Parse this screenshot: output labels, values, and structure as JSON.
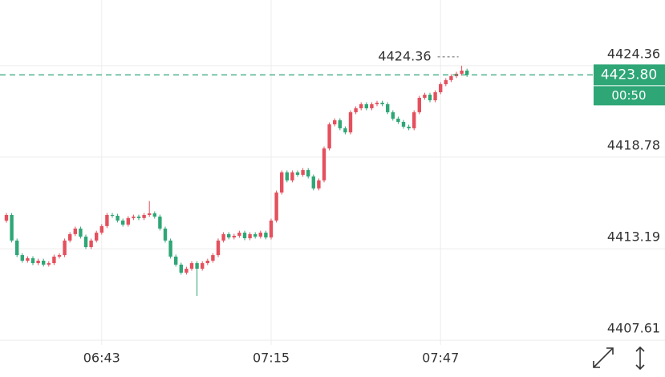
{
  "chart_data": {
    "type": "candlestick",
    "categories": [
      null,
      null,
      null,
      null,
      null,
      null,
      null,
      null,
      null,
      null,
      null,
      null,
      null,
      null,
      null,
      null,
      null,
      null,
      "06:43",
      null,
      null,
      null,
      null,
      null,
      null,
      null,
      null,
      null,
      null,
      null,
      null,
      null,
      null,
      null,
      null,
      null,
      null,
      null,
      null,
      null,
      null,
      null,
      null,
      null,
      null,
      null,
      null,
      null,
      null,
      null,
      "07:15",
      null,
      null,
      null,
      null,
      null,
      null,
      null,
      null,
      null,
      null,
      null,
      null,
      null,
      null,
      null,
      null,
      null,
      null,
      null,
      null,
      null,
      null,
      null,
      null,
      null,
      null,
      null,
      null,
      null,
      null,
      null,
      "07:47",
      null,
      null,
      null,
      null,
      null
    ],
    "open": [
      4414.9,
      4415.25,
      4413.69,
      4412.8,
      4412.46,
      4412.61,
      4412.31,
      4412.46,
      4412.22,
      4412.31,
      4412.71,
      4412.8,
      4413.69,
      4414.08,
      4414.42,
      4413.93,
      4413.29,
      4413.69,
      4414.17,
      4414.57,
      4415.25,
      4415.2,
      4414.91,
      4414.66,
      4415.06,
      4415.15,
      4415.06,
      4415.25,
      4415.35,
      4415.15,
      4414.42,
      4413.69,
      4412.71,
      4412.22,
      4411.73,
      4411.97,
      4412.31,
      4411.97,
      4412.31,
      4412.46,
      4412.8,
      4413.69,
      4414.08,
      4413.88,
      4413.98,
      4414.17,
      4413.83,
      4414.08,
      4413.93,
      4414.17,
      4413.88,
      4414.91,
      4416.62,
      4417.85,
      4417.36,
      4417.85,
      4417.7,
      4417.99,
      4417.6,
      4416.87,
      4417.36,
      4419.31,
      4420.78,
      4421.03,
      4420.54,
      4420.29,
      4421.52,
      4421.76,
      4422.01,
      4421.76,
      4422.01,
      4422.1,
      4422.01,
      4421.52,
      4421.13,
      4420.93,
      4420.64,
      4420.54,
      4421.52,
      4422.4,
      4422.59,
      4422.25,
      4422.74,
      4423.23,
      4423.48,
      4423.72,
      4423.87,
      4424.06
    ],
    "high": [
      4415.37,
      4415.37,
      4413.81,
      4412.92,
      4412.73,
      4412.73,
      4412.58,
      4412.58,
      4412.43,
      4412.83,
      4412.92,
      4413.81,
      4414.2,
      4414.54,
      4414.54,
      4414.05,
      4413.81,
      4414.29,
      4414.69,
      4415.37,
      4415.37,
      4415.32,
      4415.03,
      4415.18,
      4415.27,
      4415.27,
      4415.37,
      4416.1,
      4415.47,
      4415.27,
      4414.54,
      4413.81,
      4412.83,
      4412.34,
      4412.09,
      4412.43,
      4412.43,
      4412.43,
      4412.58,
      4412.92,
      4413.81,
      4414.2,
      4414.2,
      4414.1,
      4414.29,
      4414.29,
      4414.2,
      4414.2,
      4414.29,
      4414.29,
      4415.03,
      4416.74,
      4417.97,
      4417.97,
      4417.97,
      4417.97,
      4418.11,
      4418.11,
      4417.72,
      4417.48,
      4419.43,
      4420.9,
      4421.15,
      4421.15,
      4420.66,
      4421.64,
      4421.88,
      4422.13,
      4422.13,
      4422.13,
      4422.22,
      4422.22,
      4422.13,
      4421.64,
      4421.25,
      4421.05,
      4420.76,
      4421.64,
      4422.52,
      4422.71,
      4422.71,
      4422.86,
      4423.35,
      4423.6,
      4423.84,
      4423.99,
      4424.36,
      4424.18
    ],
    "low": [
      4414.78,
      4413.57,
      4412.68,
      4412.34,
      4412.34,
      4412.19,
      4412.19,
      4412.1,
      4412.1,
      4412.19,
      4412.59,
      4412.68,
      4413.57,
      4413.96,
      4413.81,
      4413.17,
      4413.17,
      4413.57,
      4414.05,
      4414.45,
      4415.08,
      4414.79,
      4414.54,
      4414.54,
      4414.94,
      4414.94,
      4414.94,
      4415.13,
      4415.03,
      4414.3,
      4413.57,
      4412.59,
      4412.1,
      4411.61,
      4411.61,
      4411.85,
      4410.3,
      4411.85,
      4412.19,
      4412.34,
      4412.68,
      4413.57,
      4413.76,
      4413.76,
      4413.86,
      4413.71,
      4413.71,
      4413.81,
      4413.81,
      4413.76,
      4413.76,
      4414.79,
      4416.5,
      4417.24,
      4417.24,
      4417.58,
      4417.58,
      4417.48,
      4416.75,
      4416.75,
      4417.24,
      4419.19,
      4420.66,
      4420.42,
      4420.17,
      4420.17,
      4421.4,
      4421.64,
      4421.64,
      4421.64,
      4421.89,
      4421.89,
      4421.4,
      4421.01,
      4420.81,
      4420.52,
      4420.42,
      4420.42,
      4421.4,
      4422.28,
      4422.13,
      4422.13,
      4422.62,
      4423.11,
      4423.36,
      4423.6,
      4423.75,
      4423.68
    ],
    "close": [
      4415.25,
      4413.69,
      4412.8,
      4412.46,
      4412.61,
      4412.31,
      4412.46,
      4412.22,
      4412.31,
      4412.71,
      4412.8,
      4413.69,
      4414.08,
      4414.42,
      4413.93,
      4413.29,
      4413.69,
      4414.17,
      4414.57,
      4415.25,
      4415.2,
      4414.91,
      4414.66,
      4415.06,
      4415.15,
      4415.06,
      4415.25,
      4415.35,
      4415.15,
      4414.42,
      4413.69,
      4412.71,
      4412.22,
      4411.73,
      4411.97,
      4412.31,
      4411.97,
      4412.31,
      4412.46,
      4412.8,
      4413.69,
      4414.08,
      4413.88,
      4413.98,
      4414.17,
      4413.83,
      4414.08,
      4413.93,
      4414.17,
      4413.88,
      4414.91,
      4416.62,
      4417.85,
      4417.36,
      4417.85,
      4417.7,
      4417.99,
      4417.6,
      4416.87,
      4417.36,
      4419.31,
      4420.78,
      4421.03,
      4420.54,
      4420.29,
      4421.52,
      4421.76,
      4422.01,
      4421.76,
      4422.01,
      4422.1,
      4422.01,
      4421.52,
      4421.13,
      4420.93,
      4420.64,
      4420.54,
      4421.52,
      4422.4,
      4422.59,
      4422.25,
      4422.74,
      4423.23,
      4423.48,
      4423.72,
      4423.87,
      4424.06,
      4423.8
    ],
    "up_color": "#e4505d",
    "down_color": "#2ea676",
    "ylim": [
      4406.83,
      4428.37
    ],
    "yticks": [
      4424.36,
      4418.78,
      4413.19,
      4407.61
    ],
    "grid": true,
    "high_marker": {
      "value": 4424.36,
      "label": "4424.36"
    },
    "last_price": {
      "value": 4423.8,
      "label": "4423.80"
    },
    "countdown": "00:50"
  }
}
